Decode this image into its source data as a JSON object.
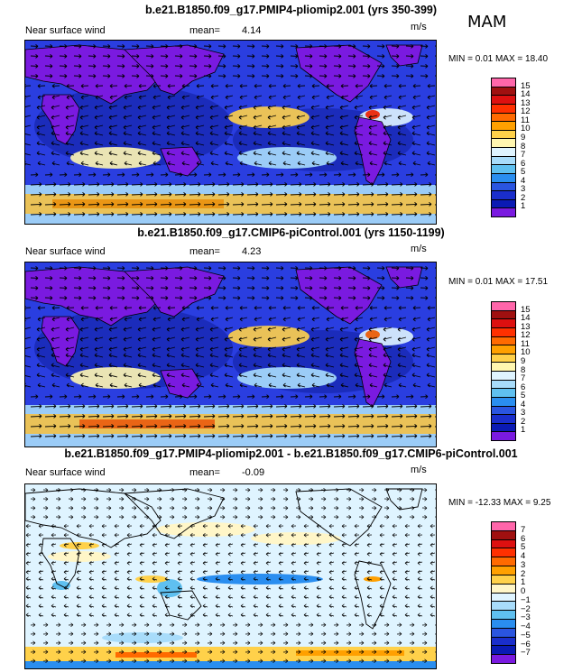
{
  "season": "MAM",
  "panels": [
    {
      "title": "b.e21.B1850.f09_g17.PMIP4-pliomip2.001 (yrs 350-399)",
      "variable": "Near surface wind",
      "mean_label": "mean=",
      "mean": "4.14",
      "units": "m/s",
      "minmax": "MIN =   0.01 MAX =  18.40",
      "labels": [
        "15",
        "14",
        "13",
        "12",
        "11",
        "10",
        "9",
        "8",
        "7",
        "6",
        "5",
        "4",
        "3",
        "2",
        "1"
      ],
      "colors": [
        "#ff66aa",
        "#a01010",
        "#dd1010",
        "#ff3000",
        "#ff6a00",
        "#ffa000",
        "#ffd14a",
        "#fff6b0",
        "#dff4ff",
        "#a8dcfa",
        "#5fc0f0",
        "#2a8ef0",
        "#2a55e0",
        "#1a2ecc",
        "#0a1ab4",
        "#7a1ae0"
      ]
    },
    {
      "title": "b.e21.B1850.f09_g17.CMIP6-piControl.001 (yrs 1150-1199)",
      "variable": "Near surface wind",
      "mean_label": "mean=",
      "mean": "4.23",
      "units": "m/s",
      "minmax": "MIN =   0.01 MAX =  17.51",
      "labels": [
        "15",
        "14",
        "13",
        "12",
        "11",
        "10",
        "9",
        "8",
        "7",
        "6",
        "5",
        "4",
        "3",
        "2",
        "1"
      ],
      "colors": [
        "#ff66aa",
        "#a01010",
        "#dd1010",
        "#ff3000",
        "#ff6a00",
        "#ffa000",
        "#ffd14a",
        "#fff6b0",
        "#dff4ff",
        "#a8dcfa",
        "#5fc0f0",
        "#2a8ef0",
        "#2a55e0",
        "#1a2ecc",
        "#0a1ab4",
        "#7a1ae0"
      ]
    },
    {
      "title": "b.e21.B1850.f09_g17.PMIP4-pliomip2.001 - b.e21.B1850.f09_g17.CMIP6-piControl.001",
      "variable": "Near surface wind",
      "mean_label": "mean=",
      "mean": "-0.09",
      "units": "m/s",
      "minmax": "MIN = -12.33 MAX =   9.25",
      "labels": [
        "7",
        "6",
        "5",
        "4",
        "3",
        "2",
        "1",
        "0",
        "−1",
        "−2",
        "−3",
        "−4",
        "−5",
        "−6",
        "−7"
      ],
      "colors": [
        "#ff66aa",
        "#a01010",
        "#dd1010",
        "#ff3000",
        "#ff6a00",
        "#ffa000",
        "#ffd14a",
        "#fff6c8",
        "#dff4ff",
        "#a8dcfa",
        "#5fc0f0",
        "#2a8ef0",
        "#2a55e0",
        "#1a2ecc",
        "#0a1ab4",
        "#7a1ae0"
      ]
    }
  ]
}
